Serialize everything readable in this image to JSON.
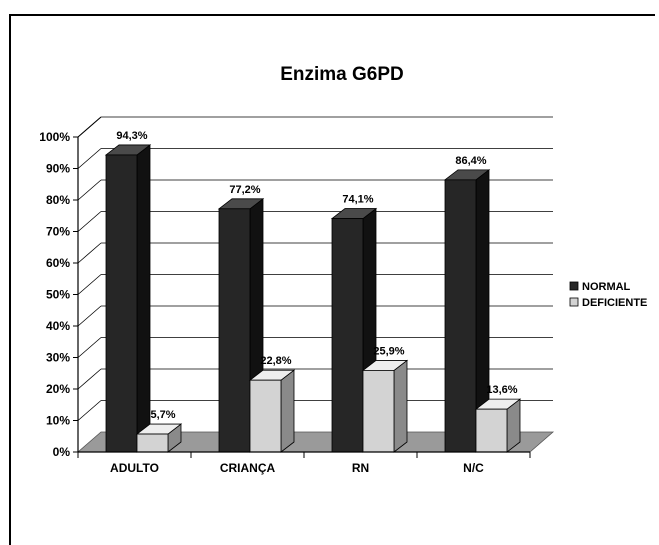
{
  "chart_data": {
    "type": "bar",
    "title": "Enzima G6PD",
    "categories": [
      "ADULTO",
      "CRIANÇA",
      "RN",
      "N/C"
    ],
    "series": [
      {
        "name": "NORMAL",
        "values": [
          94.3,
          77.2,
          74.1,
          86.4
        ],
        "labels": [
          "94,3%",
          "77,2%",
          "74,1%",
          "86,4%"
        ],
        "color": "#2b2b2b"
      },
      {
        "name": "DEFICIENTE",
        "values": [
          5.7,
          22.8,
          25.9,
          13.6
        ],
        "labels": [
          "5,7%",
          "22,8%",
          "25,9%",
          "13,6%"
        ],
        "color": "#cfcfcf"
      }
    ],
    "yticks": [
      "0%",
      "10%",
      "20%",
      "30%",
      "40%",
      "50%",
      "60%",
      "70%",
      "80%",
      "90%",
      "100%"
    ],
    "ylim": [
      0,
      100
    ],
    "grid": true,
    "legend": "right",
    "three_d": true
  }
}
